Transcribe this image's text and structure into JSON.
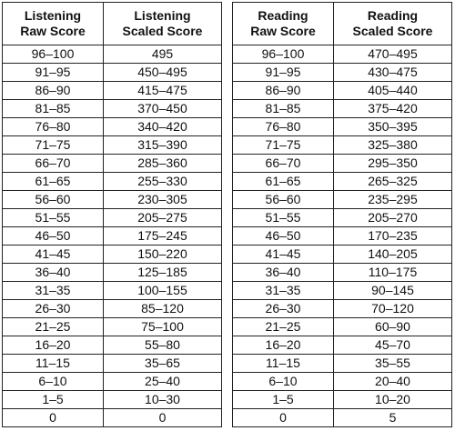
{
  "listening": {
    "headers": {
      "raw": [
        "Listening",
        "Raw Score"
      ],
      "scaled": [
        "Listening",
        "Scaled Score"
      ]
    },
    "rows": [
      [
        "96–100",
        "495"
      ],
      [
        "91–95",
        "450–495"
      ],
      [
        "86–90",
        "415–475"
      ],
      [
        "81–85",
        "370–450"
      ],
      [
        "76–80",
        "340–420"
      ],
      [
        "71–75",
        "315–390"
      ],
      [
        "66–70",
        "285–360"
      ],
      [
        "61–65",
        "255–330"
      ],
      [
        "56–60",
        "230–305"
      ],
      [
        "51–55",
        "205–275"
      ],
      [
        "46–50",
        "175–245"
      ],
      [
        "41–45",
        "150–220"
      ],
      [
        "36–40",
        "125–185"
      ],
      [
        "31–35",
        "100–155"
      ],
      [
        "26–30",
        "85–120"
      ],
      [
        "21–25",
        "75–100"
      ],
      [
        "16–20",
        "55–80"
      ],
      [
        "11–15",
        "35–65"
      ],
      [
        "6–10",
        "25–40"
      ],
      [
        "1–5",
        "10–30"
      ],
      [
        "0",
        "0"
      ]
    ]
  },
  "reading": {
    "headers": {
      "raw": [
        "Reading",
        "Raw Score"
      ],
      "scaled": [
        "Reading",
        "Scaled Score"
      ]
    },
    "rows": [
      [
        "96–100",
        "470–495"
      ],
      [
        "91–95",
        "430–475"
      ],
      [
        "86–90",
        "405–440"
      ],
      [
        "81–85",
        "375–420"
      ],
      [
        "76–80",
        "350–395"
      ],
      [
        "71–75",
        "325–380"
      ],
      [
        "66–70",
        "295–350"
      ],
      [
        "61–65",
        "265–325"
      ],
      [
        "56–60",
        "235–295"
      ],
      [
        "51–55",
        "205–270"
      ],
      [
        "46–50",
        "170–235"
      ],
      [
        "41–45",
        "140–205"
      ],
      [
        "36–40",
        "110–175"
      ],
      [
        "31–35",
        "90–145"
      ],
      [
        "26–30",
        "70–120"
      ],
      [
        "21–25",
        "60–90"
      ],
      [
        "16–20",
        "45–70"
      ],
      [
        "11–15",
        "35–55"
      ],
      [
        "6–10",
        "20–40"
      ],
      [
        "1–5",
        "10–20"
      ],
      [
        "0",
        "5"
      ]
    ]
  }
}
